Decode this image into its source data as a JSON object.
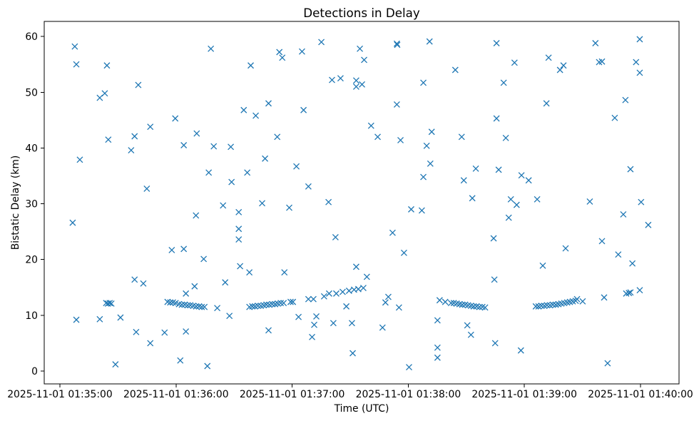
{
  "chart_data": {
    "type": "scatter",
    "title": "Detections in Delay",
    "xlabel": "Time (UTC)",
    "ylabel": "Bistatic Delay (km)",
    "xlim": [
      -8.1,
      319.9
    ],
    "ylim": [
      -2.3,
      62.7
    ],
    "grid": false,
    "xticks": [
      {
        "value": 0,
        "label": "2025-11-01 01:35:00"
      },
      {
        "value": 60,
        "label": "2025-11-01 01:36:00"
      },
      {
        "value": 120,
        "label": "2025-11-01 01:37:00"
      },
      {
        "value": 180,
        "label": "2025-11-01 01:38:00"
      },
      {
        "value": 240,
        "label": "2025-11-01 01:39:00"
      },
      {
        "value": 300,
        "label": "2025-11-01 01:40:00"
      }
    ],
    "yticks": [
      {
        "value": 0,
        "label": "0"
      },
      {
        "value": 10,
        "label": "10"
      },
      {
        "value": 20,
        "label": "20"
      },
      {
        "value": 30,
        "label": "30"
      },
      {
        "value": 40,
        "label": "40"
      },
      {
        "value": 50,
        "label": "50"
      },
      {
        "value": 60,
        "label": "60"
      }
    ],
    "series": [
      {
        "color": "#1f77b4",
        "x": [
          6.6,
          7.7,
          8.5,
          8.5,
          10.3,
          20.6,
          20.6,
          23.2,
          24.3,
          25.0,
          23.9,
          24.8,
          25.7,
          26.6,
          28.7,
          31.3,
          36.8,
          38.6,
          38.6,
          39.4,
          40.5,
          43.1,
          44.9,
          46.7,
          46.7,
          54.1,
          55.6,
          57.0,
          58.4,
          59.8,
          61.5,
          63.0,
          64.5,
          66.0,
          67.4,
          68.9,
          70.4,
          71.9,
          73.3,
          74.7,
          57.8,
          59.6,
          62.2,
          64.0,
          64.0,
          65.1,
          65.1,
          69.6,
          70.3,
          70.7,
          74.3,
          76.2,
          76.9,
          78.0,
          79.5,
          81.3,
          84.3,
          85.4,
          87.6,
          88.3,
          88.7,
          92.4,
          92.4,
          92.4,
          93.1,
          95.0,
          96.8,
          97.9,
          98.6,
          101.2,
          97.9,
          99.4,
          100.8,
          102.3,
          103.8,
          105.3,
          106.7,
          108.2,
          109.7,
          111.2,
          112.6,
          114.1,
          115.6,
          119.2,
          120.4,
          104.5,
          106.0,
          107.8,
          107.8,
          112.3,
          113.4,
          114.9,
          116.0,
          118.5,
          122.2,
          123.3,
          125.1,
          125.9,
          128.4,
          128.4,
          130.3,
          131.0,
          131.4,
          132.5,
          135.1,
          136.5,
          138.8,
          139.1,
          140.6,
          141.3,
          142.4,
          142.8,
          145.0,
          146.1,
          148.0,
          149.4,
          150.9,
          151.3,
          152.0,
          153.1,
          153.1,
          153.1,
          154.2,
          155.0,
          156.1,
          156.8,
          157.2,
          158.6,
          160.8,
          164.2,
          166.7,
          168.2,
          169.7,
          171.9,
          174.1,
          174.3,
          174.1,
          175.2,
          176.0,
          177.8,
          180.4,
          181.5,
          187.0,
          187.8,
          187.8,
          189.5,
          191.0,
          191.4,
          192.1,
          195.1,
          195.1,
          195.1,
          196.2,
          199.1,
          202.1,
          203.5,
          205.0,
          206.5,
          207.9,
          209.4,
          210.9,
          212.4,
          213.8,
          215.3,
          216.8,
          218.3,
          219.7,
          204.3,
          207.6,
          208.7,
          210.5,
          212.4,
          213.1,
          214.9,
          224.1,
          224.5,
          224.9,
          225.6,
          225.6,
          226.7,
          229.3,
          230.4,
          231.9,
          233.0,
          234.9,
          236.0,
          238.2,
          238.5,
          242.2,
          246.6,
          245.9,
          247.3,
          248.8,
          250.3,
          251.7,
          253.2,
          254.7,
          256.2,
          257.6,
          259.1,
          260.6,
          262.1,
          263.5,
          265.0,
          266.5,
          267.2,
          249.5,
          251.4,
          252.5,
          258.4,
          260.2,
          261.3,
          270.1,
          273.8,
          276.7,
          278.6,
          280.1,
          280.1,
          281.2,
          283.0,
          286.7,
          288.5,
          291.1,
          292.2,
          292.6,
          294.0,
          294.8,
          294.8,
          295.8,
          297.7,
          299.6,
          299.6,
          299.6,
          300.3,
          304.0
        ],
        "y": [
          26.6,
          58.2,
          55.0,
          9.2,
          37.9,
          49.0,
          9.3,
          49.8,
          54.8,
          41.5,
          12.2,
          12.1,
          12.2,
          12.1,
          1.2,
          9.6,
          39.6,
          42.1,
          16.4,
          7.0,
          51.3,
          15.7,
          32.7,
          5.0,
          43.8,
          6.9,
          12.4,
          12.3,
          12.3,
          12.2,
          12.0,
          11.9,
          11.9,
          11.8,
          11.8,
          11.7,
          11.6,
          11.6,
          11.5,
          11.5,
          21.7,
          45.3,
          1.9,
          40.5,
          21.9,
          7.1,
          13.9,
          15.2,
          27.9,
          42.6,
          20.1,
          0.9,
          35.6,
          57.8,
          40.3,
          11.3,
          29.7,
          15.9,
          9.9,
          40.2,
          33.9,
          28.5,
          25.5,
          23.6,
          18.8,
          46.8,
          35.6,
          17.7,
          54.8,
          45.8,
          11.5,
          11.6,
          11.6,
          11.7,
          11.7,
          11.8,
          11.9,
          11.9,
          12.0,
          12.0,
          12.1,
          12.2,
          12.2,
          12.4,
          12.4,
          30.1,
          38.1,
          48.0,
          7.3,
          42.0,
          57.2,
          56.2,
          17.7,
          29.3,
          36.7,
          9.7,
          57.3,
          46.8,
          33.1,
          12.9,
          6.1,
          12.9,
          8.3,
          9.8,
          59.0,
          13.4,
          30.3,
          13.9,
          52.2,
          8.6,
          24.0,
          13.9,
          52.5,
          14.2,
          11.6,
          14.4,
          8.6,
          3.2,
          14.6,
          52.1,
          51.0,
          18.7,
          14.7,
          57.8,
          51.4,
          14.9,
          55.8,
          16.9,
          44.0,
          42.0,
          7.8,
          12.3,
          13.3,
          24.8,
          58.7,
          58.5,
          47.8,
          11.4,
          41.4,
          21.2,
          0.7,
          29.0,
          28.8,
          51.7,
          34.8,
          40.4,
          59.1,
          37.2,
          42.9,
          9.1,
          4.2,
          2.4,
          12.7,
          12.4,
          12.2,
          12.2,
          12.1,
          12.0,
          11.9,
          11.9,
          11.8,
          11.7,
          11.6,
          11.6,
          11.5,
          11.5,
          11.4,
          54.0,
          42.0,
          34.2,
          8.2,
          6.5,
          31.0,
          36.3,
          23.8,
          16.4,
          5.0,
          58.8,
          45.3,
          36.1,
          51.7,
          41.8,
          27.5,
          30.8,
          55.3,
          29.8,
          3.7,
          35.1,
          34.2,
          30.8,
          11.6,
          11.6,
          11.7,
          11.7,
          11.8,
          11.8,
          11.9,
          11.9,
          12.0,
          12.1,
          12.2,
          12.3,
          12.4,
          12.5,
          12.6,
          12.9,
          18.9,
          48.0,
          56.2,
          54.0,
          54.8,
          22.0,
          12.5,
          30.4,
          58.8,
          55.4,
          55.5,
          23.3,
          13.2,
          1.4,
          45.4,
          20.9,
          28.1,
          48.6,
          13.9,
          14.0,
          36.2,
          14.1,
          19.3,
          55.4,
          59.5,
          53.5,
          14.5,
          30.3,
          26.2
        ]
      }
    ]
  }
}
